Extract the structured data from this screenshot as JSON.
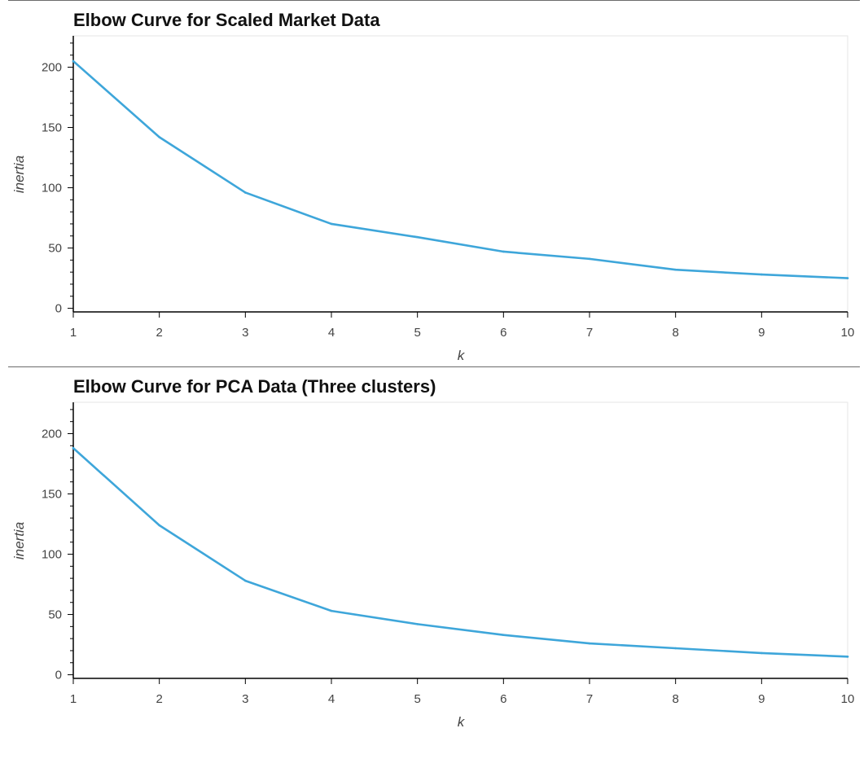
{
  "chart_data": [
    {
      "type": "line",
      "title": "Elbow Curve for Scaled Market Data",
      "xlabel": "k",
      "ylabel": "inertia",
      "x": [
        1,
        2,
        3,
        4,
        5,
        6,
        7,
        8,
        9,
        10
      ],
      "xticks": [
        "1",
        "2",
        "3",
        "4",
        "5",
        "6",
        "7",
        "8",
        "9",
        "10"
      ],
      "yticks": [
        "0",
        "50",
        "100",
        "150",
        "200"
      ],
      "xlim": [
        1,
        10
      ],
      "ylim": [
        -3,
        226
      ],
      "grid": false,
      "series_color": "#3ea6da",
      "series": [
        {
          "values": [
            205,
            142,
            96,
            70,
            59,
            47,
            41,
            32,
            28,
            25
          ]
        }
      ]
    },
    {
      "type": "line",
      "title": "Elbow Curve for PCA Data (Three clusters)",
      "xlabel": "k",
      "ylabel": "inertia",
      "x": [
        1,
        2,
        3,
        4,
        5,
        6,
        7,
        8,
        9,
        10
      ],
      "xticks": [
        "1",
        "2",
        "3",
        "4",
        "5",
        "6",
        "7",
        "8",
        "9",
        "10"
      ],
      "yticks": [
        "0",
        "50",
        "100",
        "150",
        "200"
      ],
      "xlim": [
        1,
        10
      ],
      "ylim": [
        -3,
        226
      ],
      "grid": false,
      "series_color": "#3ea6da",
      "series": [
        {
          "values": [
            188,
            124,
            78,
            53,
            42,
            33,
            26,
            22,
            18,
            15
          ]
        }
      ]
    }
  ]
}
